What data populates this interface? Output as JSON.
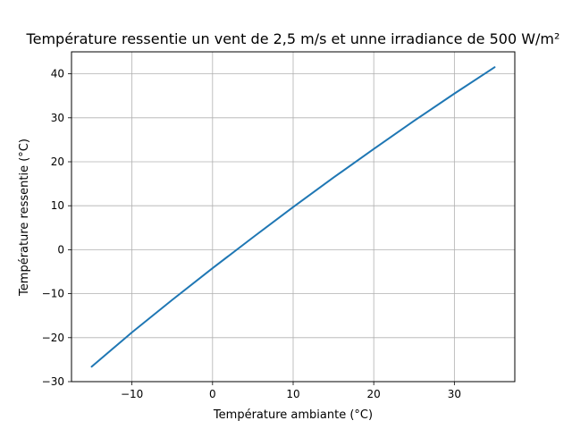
{
  "chart_data": {
    "type": "line",
    "title": "Température ressentie un vent de 2,5 m/s et unne irradiance de 500 W/m²",
    "xlabel": "Température ambiante (°C)",
    "ylabel": "Température ressentie (°C)",
    "xlim": [
      -17.5,
      37.5
    ],
    "ylim": [
      -30,
      45
    ],
    "xticks": [
      -10,
      0,
      10,
      20,
      30
    ],
    "xtick_labels": [
      "−10",
      "0",
      "10",
      "20",
      "30"
    ],
    "yticks": [
      -30,
      -20,
      -10,
      0,
      10,
      20,
      30,
      40
    ],
    "ytick_labels": [
      "−30",
      "−20",
      "−10",
      "0",
      "10",
      "20",
      "30",
      "40"
    ],
    "grid": true,
    "series": [
      {
        "color": "#1f77b4",
        "x": [
          -15,
          -10,
          -5,
          0,
          5,
          10,
          15,
          20,
          25,
          30,
          35
        ],
        "y": [
          -26.6,
          -18.8,
          -11.4,
          -4.2,
          2.8,
          9.7,
          16.4,
          22.9,
          29.3,
          35.5,
          41.5
        ]
      }
    ]
  }
}
